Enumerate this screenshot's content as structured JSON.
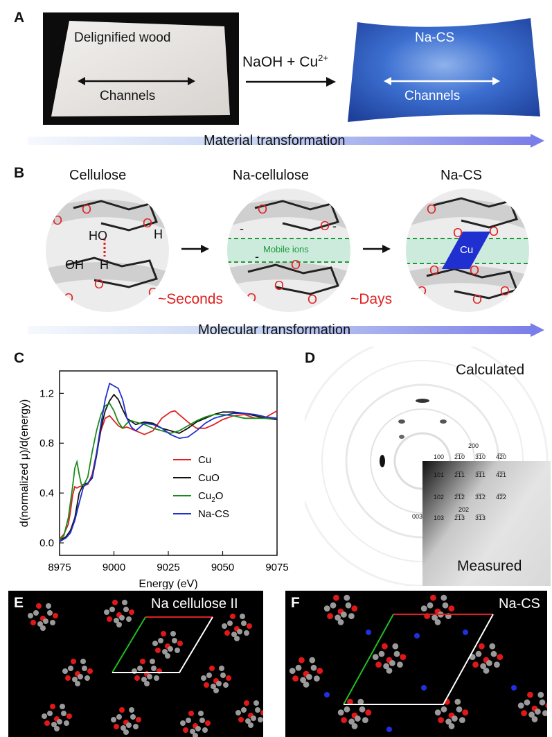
{
  "panels": {
    "a": "A",
    "b": "B",
    "c": "C",
    "d": "D",
    "e": "E",
    "f": "F"
  },
  "panel_a": {
    "left_title": "Delignified wood",
    "left_channels": "Channels",
    "reaction_main": "NaOH + Cu",
    "reaction_sup": "2+",
    "right_title": "Na-CS",
    "right_channels": "Channels",
    "bar_label": "Material transformation"
  },
  "panel_b": {
    "col1": "Cellulose",
    "col2": "Na-cellulose",
    "col3": "Na-CS",
    "mobile_ions": "Mobile ions",
    "cu": "Cu",
    "step1": "~Seconds",
    "step2": "~Days",
    "bar_label": "Molecular transformation",
    "atom_o": "O",
    "atom_h": "H",
    "ho": "HO",
    "oh": "OH",
    "minus": "-"
  },
  "panel_d": {
    "calculated": "Calculated",
    "measured": "Measured",
    "indices": [
      {
        "t": "200"
      },
      {
        "t": "100"
      },
      {
        "t": "2̅1̅0"
      },
      {
        "t": "3̅1̅0"
      },
      {
        "t": "4̅2̅0"
      },
      {
        "t": "101"
      },
      {
        "t": "2̅1̅1"
      },
      {
        "t": "3̅1̅1"
      },
      {
        "t": "4̅2̅1"
      },
      {
        "t": "102"
      },
      {
        "t": "2̅1̅2"
      },
      {
        "t": "3̅1̅2"
      },
      {
        "t": "4̅2̅2"
      },
      {
        "t": "003"
      },
      {
        "t": "202"
      },
      {
        "t": "103"
      },
      {
        "t": "2̅1̅3"
      },
      {
        "t": "3̅1̅3"
      }
    ]
  },
  "panel_e": {
    "title": "Na cellulose II"
  },
  "panel_f": {
    "title": "Na-CS"
  },
  "chart_data": {
    "type": "line",
    "title": "",
    "xlabel": "Energy (eV)",
    "ylabel": "d(normalized μ)/d(energy)",
    "xlim": [
      8975,
      9075
    ],
    "ylim": [
      -0.1,
      1.38
    ],
    "xticks": [
      8975,
      9000,
      9025,
      9050,
      9075
    ],
    "yticks": [
      0.0,
      0.4,
      0.8,
      1.2
    ],
    "xtick_labels": [
      "8975",
      "9000",
      "9025",
      "9050",
      "9075"
    ],
    "ytick_labels": [
      "0.0",
      "0.4",
      "0.8",
      "1.2"
    ],
    "legend_placement": "bottom-right",
    "legend": [
      {
        "name": "Cu",
        "sub": ""
      },
      {
        "name": "CuO",
        "sub": ""
      },
      {
        "name": "Cu",
        "sub": "2",
        "tail": "O"
      },
      {
        "name": "Na-CS",
        "sub": ""
      }
    ],
    "series": [
      {
        "color": "#e02020",
        "x": [
          8975,
          8977,
          8979,
          8980,
          8981,
          8982,
          8983,
          8984,
          8986,
          8988,
          8990,
          8992,
          8994,
          8996,
          8998,
          9000,
          9002,
          9004,
          9006,
          9010,
          9014,
          9018,
          9022,
          9026,
          9028,
          9030,
          9034,
          9038,
          9042,
          9046,
          9050,
          9055,
          9060,
          9065,
          9070,
          9075
        ],
        "y": [
          0.03,
          0.07,
          0.15,
          0.25,
          0.38,
          0.45,
          0.44,
          0.45,
          0.46,
          0.47,
          0.55,
          0.72,
          0.9,
          1.0,
          1.02,
          0.98,
          0.94,
          0.92,
          0.93,
          0.9,
          0.87,
          0.9,
          1.0,
          1.05,
          1.06,
          1.03,
          0.97,
          0.92,
          0.92,
          0.95,
          0.99,
          1.02,
          1.03,
          1.0,
          1.01,
          1.06
        ]
      },
      {
        "color": "#111111",
        "x": [
          8975,
          8978,
          8980,
          8982,
          8984,
          8986,
          8988,
          8990,
          8992,
          8994,
          8996,
          8998,
          9000,
          9002,
          9004,
          9006,
          9010,
          9014,
          9018,
          9022,
          9026,
          9030,
          9034,
          9038,
          9042,
          9046,
          9050,
          9055,
          9060,
          9065,
          9070,
          9075
        ],
        "y": [
          0.02,
          0.05,
          0.1,
          0.2,
          0.4,
          0.47,
          0.48,
          0.52,
          0.7,
          0.92,
          1.06,
          1.14,
          1.19,
          1.15,
          1.07,
          1.0,
          0.95,
          0.97,
          0.96,
          0.92,
          0.9,
          0.88,
          0.92,
          0.97,
          1.0,
          1.03,
          1.05,
          1.05,
          1.04,
          1.02,
          1.0,
          0.99
        ]
      },
      {
        "color": "#1a8a1a",
        "x": [
          8975,
          8977,
          8979,
          8981,
          8982,
          8983,
          8984,
          8985,
          8986,
          8988,
          8990,
          8992,
          8994,
          8996,
          8998,
          9000,
          9002,
          9004,
          9006,
          9008,
          9010,
          9014,
          9018,
          9022,
          9026,
          9030,
          9034,
          9038,
          9042,
          9046,
          9050,
          9055,
          9060,
          9065,
          9070,
          9075
        ],
        "y": [
          0.02,
          0.06,
          0.2,
          0.45,
          0.6,
          0.65,
          0.55,
          0.47,
          0.46,
          0.53,
          0.73,
          0.9,
          1.03,
          1.1,
          1.12,
          1.06,
          0.97,
          0.92,
          0.96,
          0.98,
          0.97,
          0.95,
          0.92,
          0.9,
          0.88,
          0.9,
          0.94,
          0.98,
          1.01,
          1.03,
          1.03,
          1.02,
          1.0,
          1.0,
          1.0,
          1.0
        ]
      },
      {
        "color": "#1f2fd0",
        "x": [
          8975,
          8978,
          8980,
          8982,
          8984,
          8986,
          8988,
          8990,
          8992,
          8994,
          8996,
          8998,
          9000,
          9002,
          9004,
          9006,
          9008,
          9010,
          9014,
          9018,
          9022,
          9026,
          9030,
          9034,
          9038,
          9042,
          9046,
          9050,
          9055,
          9060,
          9065,
          9070,
          9075
        ],
        "y": [
          0.01,
          0.04,
          0.08,
          0.18,
          0.32,
          0.45,
          0.48,
          0.53,
          0.72,
          0.95,
          1.15,
          1.28,
          1.26,
          1.24,
          1.15,
          1.0,
          0.93,
          0.9,
          0.96,
          0.95,
          0.92,
          0.87,
          0.84,
          0.85,
          0.9,
          0.96,
          1.0,
          1.02,
          1.04,
          1.04,
          1.03,
          1.01,
          1.0
        ]
      }
    ]
  }
}
